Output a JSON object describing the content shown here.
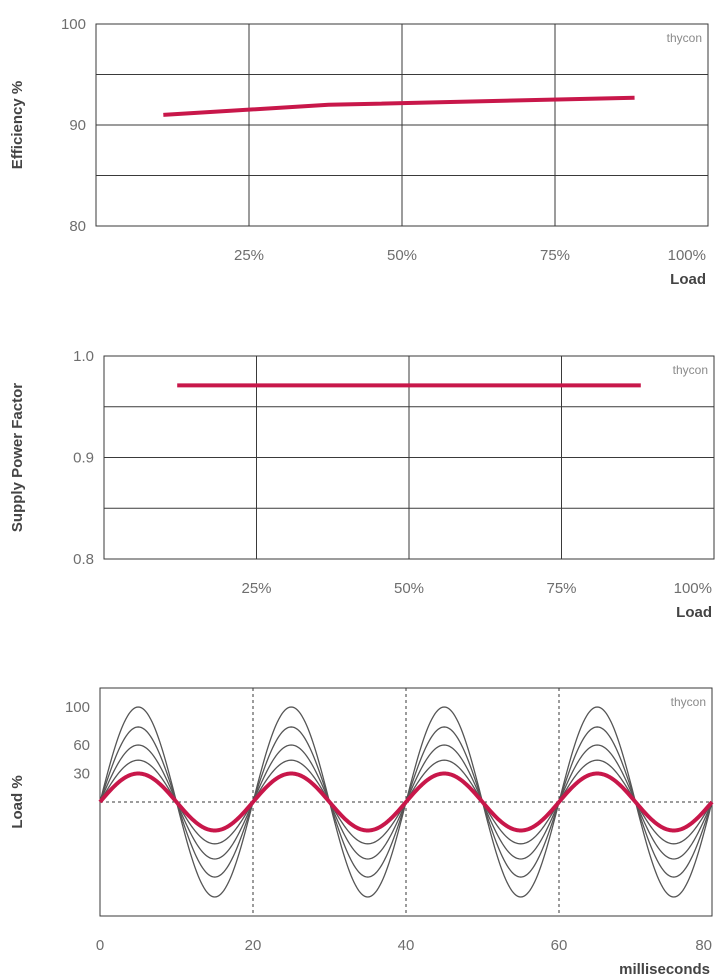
{
  "colors": {
    "accent": "#c8174a",
    "grid": "#3a3a3a",
    "thin": "#555555",
    "text": "#6e6e6e"
  },
  "chart_data": [
    {
      "type": "line",
      "watermark": "thycon",
      "ylabel": "Efficiency %",
      "xlabel": "Load",
      "ylim": [
        80,
        100
      ],
      "xlim": [
        0,
        100
      ],
      "x_ticks": [
        {
          "value": 25,
          "label": "25%"
        },
        {
          "value": 50,
          "label": "50%"
        },
        {
          "value": 75,
          "label": "75%"
        },
        {
          "value": 100,
          "label": "100%"
        }
      ],
      "y_ticks": [
        {
          "value": 100,
          "label": "100"
        },
        {
          "value": 90,
          "label": "90"
        },
        {
          "value": 80,
          "label": "80"
        }
      ],
      "x_grid": [
        25,
        50,
        75
      ],
      "y_grid": [
        95,
        90,
        85
      ],
      "series": [
        {
          "x": [
            11,
            38,
            88
          ],
          "y": [
            91.0,
            92.0,
            92.7
          ]
        }
      ]
    },
    {
      "type": "line",
      "watermark": "thycon",
      "ylabel": "Supply Power Factor",
      "xlabel": "Load",
      "ylim": [
        0.8,
        1.0
      ],
      "xlim": [
        0,
        100
      ],
      "x_ticks": [
        {
          "value": 25,
          "label": "25%"
        },
        {
          "value": 50,
          "label": "50%"
        },
        {
          "value": 75,
          "label": "75%"
        },
        {
          "value": 100,
          "label": "100%"
        }
      ],
      "y_ticks": [
        {
          "value": 1.0,
          "label": "1.0"
        },
        {
          "value": 0.9,
          "label": "0.9"
        },
        {
          "value": 0.8,
          "label": "0.8"
        }
      ],
      "x_grid": [
        25,
        50,
        75
      ],
      "y_grid": [
        0.95,
        0.9,
        0.85
      ],
      "series": [
        {
          "x": [
            12,
            88
          ],
          "y": [
            0.971,
            0.971
          ]
        }
      ]
    },
    {
      "type": "line",
      "watermark": "thycon",
      "ylabel": "Load %",
      "xlabel": "milliseconds",
      "xlim": [
        0,
        80
      ],
      "ylim": [
        -120,
        120
      ],
      "period_ms": 20,
      "x_ticks": [
        {
          "value": 0,
          "label": "0"
        },
        {
          "value": 20,
          "label": "20"
        },
        {
          "value": 40,
          "label": "40"
        },
        {
          "value": 60,
          "label": "60"
        },
        {
          "value": 80,
          "label": "80"
        }
      ],
      "y_ticks": [
        {
          "value": 100,
          "label": "100"
        },
        {
          "value": 60,
          "label": "60"
        },
        {
          "value": 30,
          "label": "30"
        }
      ],
      "dashed_x": [
        20,
        40,
        60
      ],
      "dashed_y": [
        0
      ],
      "waves": [
        {
          "amplitude": 100,
          "highlight": false
        },
        {
          "amplitude": 79,
          "highlight": false
        },
        {
          "amplitude": 60,
          "highlight": false
        },
        {
          "amplitude": 44,
          "highlight": false
        },
        {
          "amplitude": 30,
          "highlight": true
        }
      ]
    }
  ]
}
